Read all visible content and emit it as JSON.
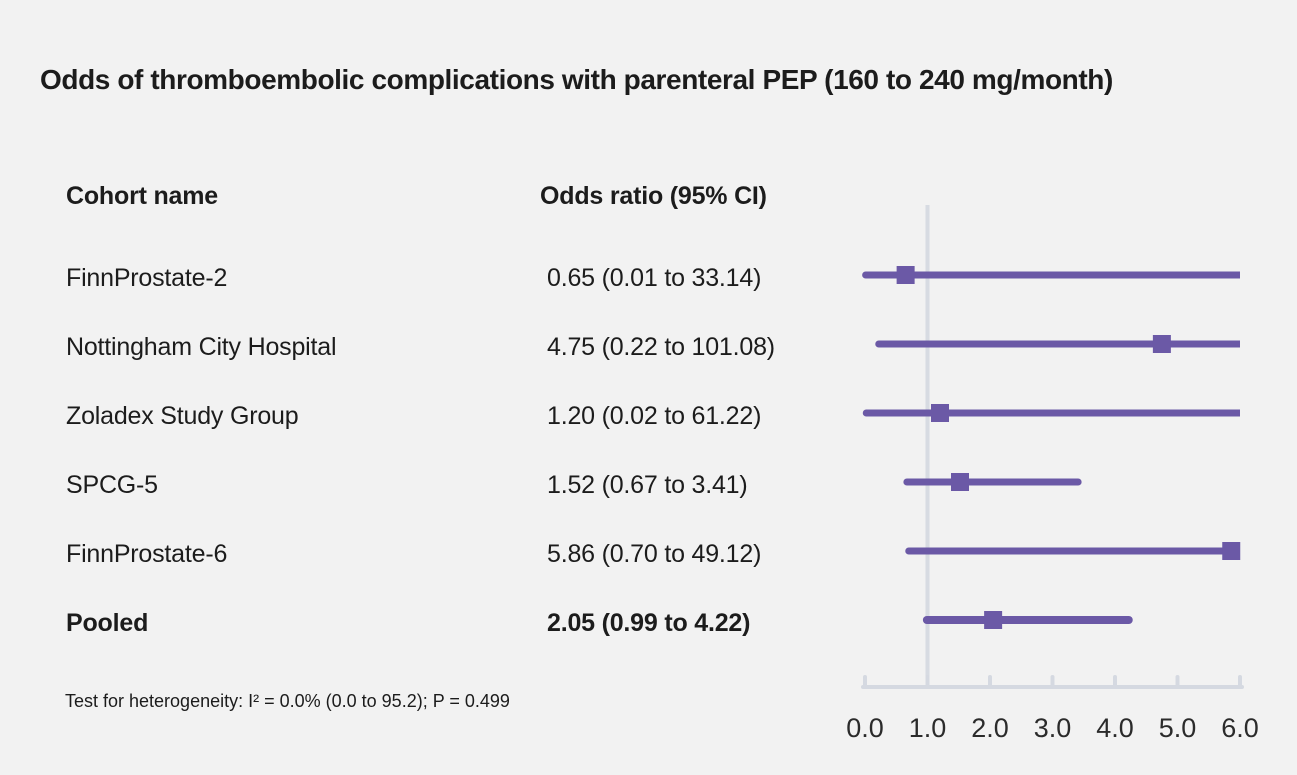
{
  "chart_data": {
    "type": "forest",
    "title": "Odds of thromboembolic complications with parenteral PEP (160 to 240 mg/month)",
    "columns": [
      "Cohort name",
      "Odds ratio (95% CI)"
    ],
    "rows": [
      {
        "name": "FinnProstate-2",
        "label": "0.65 (0.01 to 33.14)",
        "or": 0.65,
        "ci_low": 0.01,
        "ci_high": 33.14,
        "pooled": false
      },
      {
        "name": "Nottingham City Hospital",
        "label": "4.75 (0.22 to 101.08)",
        "or": 4.75,
        "ci_low": 0.22,
        "ci_high": 101.08,
        "pooled": false
      },
      {
        "name": "Zoladex Study Group",
        "label": "1.20 (0.02 to 61.22)",
        "or": 1.2,
        "ci_low": 0.02,
        "ci_high": 61.22,
        "pooled": false
      },
      {
        "name": "SPCG-5",
        "label": "1.52 (0.67 to 3.41)",
        "or": 1.52,
        "ci_low": 0.67,
        "ci_high": 3.41,
        "pooled": false
      },
      {
        "name": "FinnProstate-6",
        "label": "5.86 (0.70 to 49.12)",
        "or": 5.86,
        "ci_low": 0.7,
        "ci_high": 49.12,
        "pooled": false
      },
      {
        "name": "Pooled",
        "label": "2.05 (0.99 to 4.22)",
        "or": 2.05,
        "ci_low": 0.99,
        "ci_high": 4.22,
        "pooled": true
      }
    ],
    "x_axis": {
      "min": 0,
      "max": 6,
      "tick_values": [
        0,
        1,
        2,
        3,
        4,
        5,
        6
      ],
      "tick_labels": [
        "0.0",
        "1.0",
        "2.0",
        "3.0",
        "4.0",
        "5.0",
        "6.0"
      ],
      "reference_line": 1.0
    },
    "footnote": "Test for heterogeneity: I² = 0.0% (0.0 to 95.2); P = 0.499",
    "colors": {
      "marker": "#6B59A6",
      "axis": "#D5D9E1",
      "reference_line": "#D7DBE2",
      "background": "#F2F2F2",
      "text": "#1C1C1C",
      "tick_label": "#2B2B2B"
    }
  }
}
